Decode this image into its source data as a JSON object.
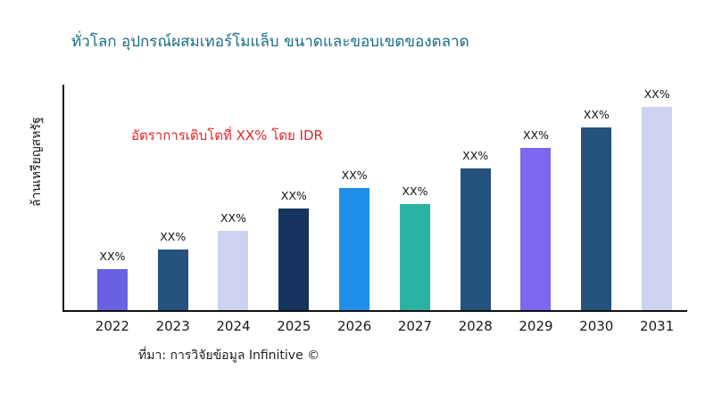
{
  "chart_data": {
    "type": "bar",
    "title": "ทั่วโลก อุปกรณ์ผสมเทอร์โมแล็บ ขนาดและขอบเขตของตลาด",
    "ylabel": "ล้านเหรียญสหรัฐ",
    "xlabel": "",
    "annotation": "อัตราการเติบโตที่ XX% โดย IDR",
    "source": "ที่มา: การวิจัยข้อมูล Infinitive ©",
    "categories": [
      "2022",
      "2023",
      "2024",
      "2025",
      "2026",
      "2027",
      "2028",
      "2029",
      "2030",
      "2031"
    ],
    "values": [
      18,
      27,
      35,
      45,
      54,
      47,
      63,
      72,
      81,
      90
    ],
    "ylim": [
      0,
      100
    ],
    "grid": false,
    "legend": false,
    "bar_labels": [
      "XX%",
      "XX%",
      "XX%",
      "XX%",
      "XX%",
      "XX%",
      "XX%",
      "XX%",
      "XX%",
      "XX%"
    ],
    "bar_colors": [
      "#6a60e2",
      "#24527c",
      "#cdd2f0",
      "#16355e",
      "#1f8fea",
      "#2ab3a3",
      "#24527c",
      "#7b68ee",
      "#24527c",
      "#cdd2f0"
    ],
    "colors": {
      "title": "#176d85",
      "annotation": "#e1242b",
      "axis": "#111111",
      "text": "#1a1a1a"
    }
  }
}
